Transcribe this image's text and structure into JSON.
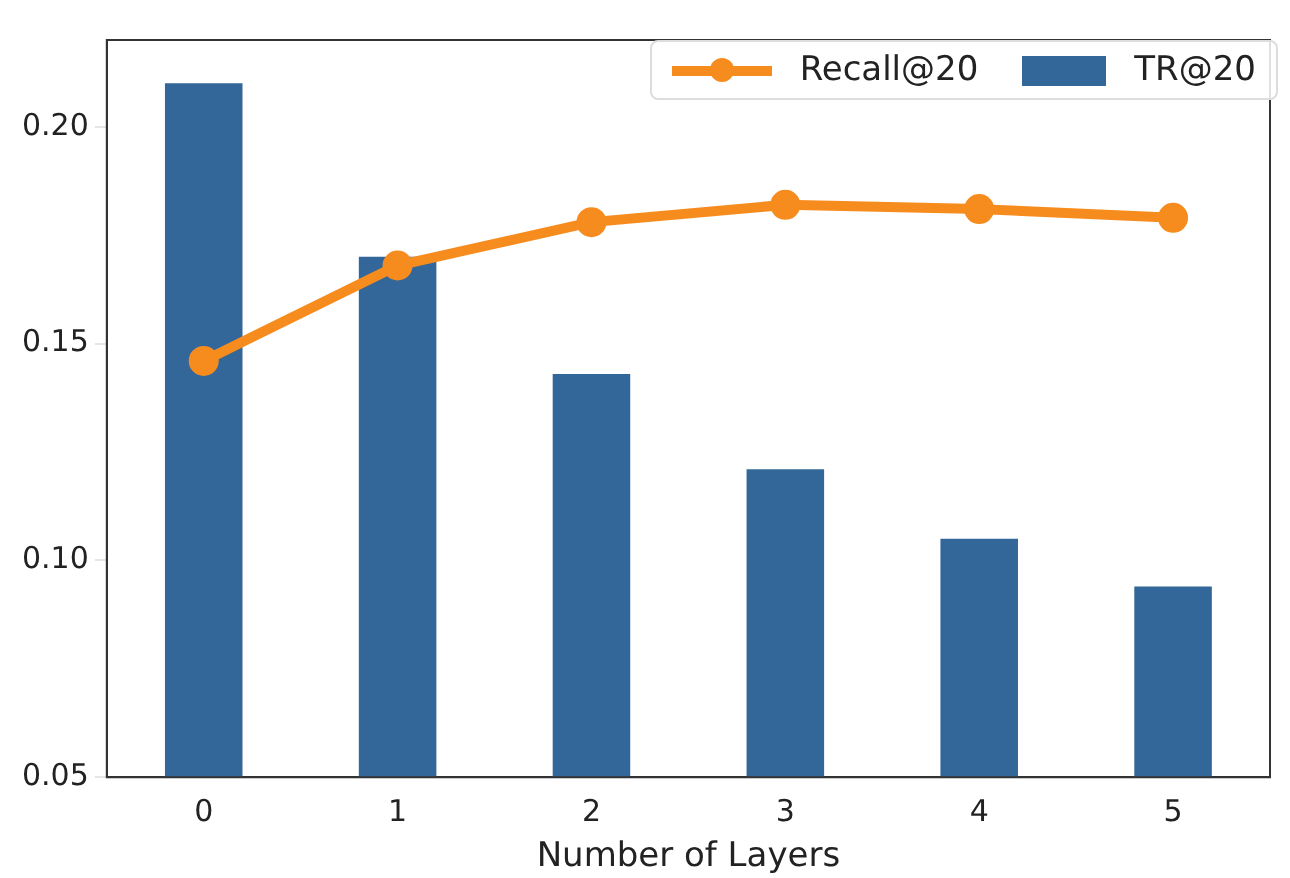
{
  "chart_data": {
    "type": "bar",
    "xlabel": "Number of Layers",
    "categories": [
      "0",
      "1",
      "2",
      "3",
      "4",
      "5"
    ],
    "series": [
      {
        "name": "Recall@20",
        "type": "line",
        "color": "#f78c1e",
        "values": [
          0.146,
          0.168,
          0.178,
          0.182,
          0.181,
          0.179
        ]
      },
      {
        "name": "TR@20",
        "color": "#336699",
        "values": [
          0.21,
          0.17,
          0.143,
          0.121,
          0.105,
          0.094
        ]
      }
    ],
    "ylim": [
      0.05,
      0.22
    ],
    "yticks": [
      {
        "value": 0.05,
        "label": "0.05"
      },
      {
        "value": 0.1,
        "label": "0.10"
      },
      {
        "value": 0.15,
        "label": "0.15"
      },
      {
        "value": 0.2,
        "label": "0.20"
      }
    ],
    "grid": false,
    "legend": "top right",
    "marker": "circle",
    "line_style": "solid"
  }
}
